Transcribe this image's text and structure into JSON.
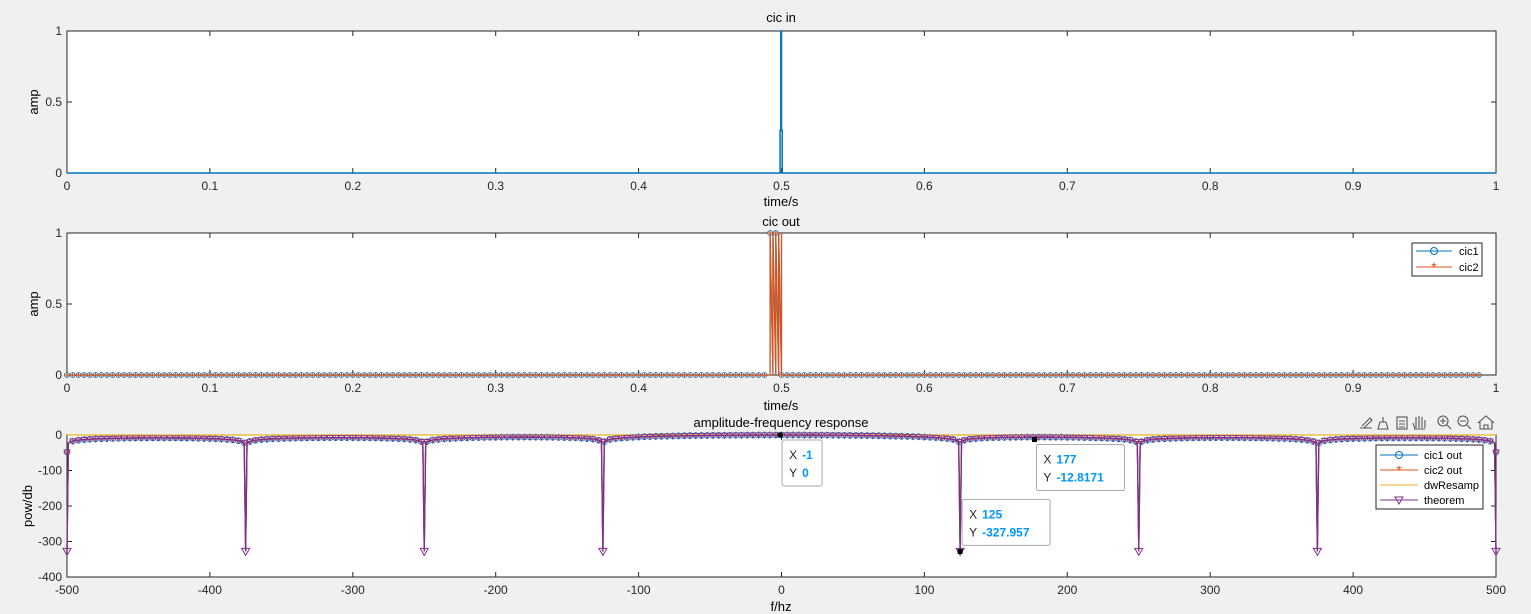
{
  "figure": {
    "background": "#f0f0f0",
    "toolbar_icons": [
      "export-icon",
      "brush-icon",
      "legend-icon",
      "pan-hand-icon",
      "zoom-in-icon",
      "zoom-out-icon",
      "home-icon"
    ]
  },
  "colors": {
    "blue": "#0072BD",
    "orange": "#D95319",
    "yellow": "#EDB120",
    "purple": "#7E2F8E",
    "datatip_value": "#0096FF"
  },
  "chart_data": [
    {
      "id": "cic-in",
      "type": "line",
      "title": "cic in",
      "xlabel": "time/s",
      "ylabel": "amp",
      "xlim": [
        0,
        1
      ],
      "ylim": [
        0,
        1
      ],
      "xticks": [
        "0",
        "0.1",
        "0.2",
        "0.3",
        "0.4",
        "0.5",
        "0.6",
        "0.7",
        "0.8",
        "0.9",
        "1"
      ],
      "yticks": [
        "0",
        "0.5",
        "1"
      ],
      "series": [
        {
          "x": [
            0,
            0.499,
            0.499,
            0.4995,
            0.4995,
            0.5,
            0.5,
            0.5005,
            0.5005,
            1
          ],
          "y": [
            0,
            0,
            0.3,
            0.3,
            1,
            1,
            0.3,
            0.3,
            0,
            0
          ],
          "color": "#0072BD"
        }
      ]
    },
    {
      "id": "cic-out",
      "type": "line",
      "title": "cic out",
      "xlabel": "time/s",
      "ylabel": "amp",
      "xlim": [
        0,
        1
      ],
      "ylim": [
        0,
        1
      ],
      "xticks": [
        "0",
        "0.1",
        "0.2",
        "0.3",
        "0.4",
        "0.5",
        "0.6",
        "0.7",
        "0.8",
        "0.9",
        "1"
      ],
      "yticks": [
        "0",
        "0.5",
        "1"
      ],
      "legend": {
        "position": "top-right",
        "entries": [
          "cic1",
          "cic2"
        ]
      },
      "series": [
        {
          "name": "cic1",
          "marker": "o",
          "color": "#0072BD",
          "pulse": [
            0.492,
            0.5
          ],
          "x_end": 0.99,
          "step": 0.002
        },
        {
          "name": "cic2",
          "marker": "*",
          "color": "#D95319",
          "pulse": [
            0.492,
            0.5
          ],
          "x_end": 0.99,
          "step": 0.002
        }
      ]
    },
    {
      "id": "amp-freq",
      "type": "line",
      "title": "amplitude-frequency response",
      "xlabel": "f/hz",
      "ylabel": "pow/db",
      "xlim": [
        -500,
        500
      ],
      "ylim": [
        -400,
        0
      ],
      "xticks": [
        "-500",
        "-400",
        "-300",
        "-200",
        "-100",
        "0",
        "100",
        "200",
        "300",
        "400",
        "500"
      ],
      "yticks": [
        "0",
        "-100",
        "-200",
        "-300",
        "-400"
      ],
      "legend": {
        "position": "right",
        "entries": [
          "cic1 out",
          "cic2 out",
          "dwResamp",
          "theorem"
        ]
      },
      "nulls": [
        -500,
        -375,
        -250,
        -125,
        125,
        250,
        375,
        500
      ],
      "null_depth": -327.957,
      "series": [
        {
          "name": "cic1 out",
          "marker": "o",
          "color": "#0072BD"
        },
        {
          "name": "cic2 out",
          "marker": "*",
          "color": "#D95319"
        },
        {
          "name": "dwResamp",
          "marker": "none",
          "color": "#EDB120",
          "constant": 0
        },
        {
          "name": "theorem",
          "marker": "v",
          "color": "#7E2F8E"
        }
      ],
      "datatips": [
        {
          "x_label": "X",
          "x_value": "-1",
          "y_label": "Y",
          "y_value": "0",
          "px": -1,
          "py": 0
        },
        {
          "x_label": "X",
          "x_value": "125",
          "y_label": "Y",
          "y_value": "-327.957",
          "px": 125,
          "py": -327.957
        },
        {
          "x_label": "X",
          "x_value": "177",
          "y_label": "Y",
          "y_value": "-12.8171",
          "px": 177,
          "py": -12.8171
        }
      ]
    }
  ]
}
